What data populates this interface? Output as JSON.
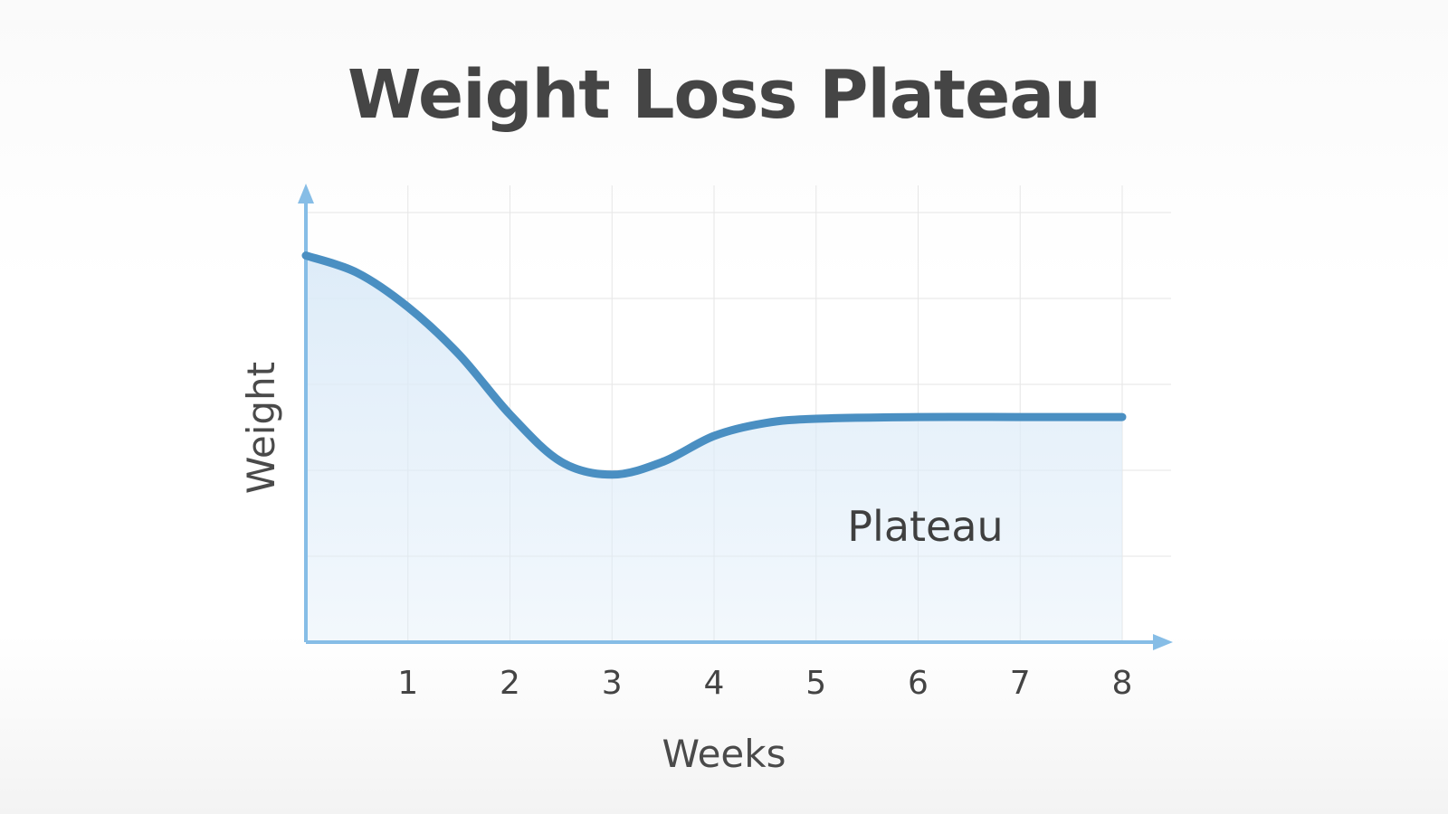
{
  "chart_data": {
    "type": "line",
    "title": "Weight Loss Plateau",
    "xlabel": "Weeks",
    "ylabel": "Weight",
    "x_ticks": [
      "1",
      "2",
      "3",
      "4",
      "5",
      "6",
      "7",
      "8"
    ],
    "xlim": [
      0,
      8
    ],
    "ylim": [
      0,
      5
    ],
    "y_ticks_labeled": false,
    "grid": true,
    "legend": "none",
    "series": [
      {
        "x": [
          0,
          0.5,
          1,
          1.5,
          2,
          2.5,
          3,
          3.5,
          4,
          4.5,
          5,
          6,
          7,
          8
        ],
        "values": [
          4.5,
          4.3,
          3.9,
          3.35,
          2.65,
          2.1,
          1.95,
          2.1,
          2.4,
          2.55,
          2.6,
          2.62,
          2.62,
          2.62
        ]
      }
    ],
    "annotations": [
      {
        "text": "Plateau",
        "x": 6,
        "y": 1.35
      }
    ],
    "colors": {
      "line": "#4a8fc2",
      "fill": "#dcebf8",
      "axis": "#86bde6",
      "grid": "#e6e6e6"
    }
  }
}
